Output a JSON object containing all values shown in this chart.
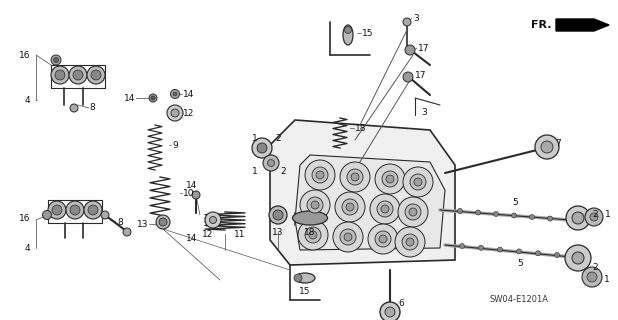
{
  "bg_color": "#ffffff",
  "line_color": "#2a2a2a",
  "text_color": "#111111",
  "diagram_code": "SW04-E1201A",
  "fig_width": 6.18,
  "fig_height": 3.2,
  "dpi": 100
}
